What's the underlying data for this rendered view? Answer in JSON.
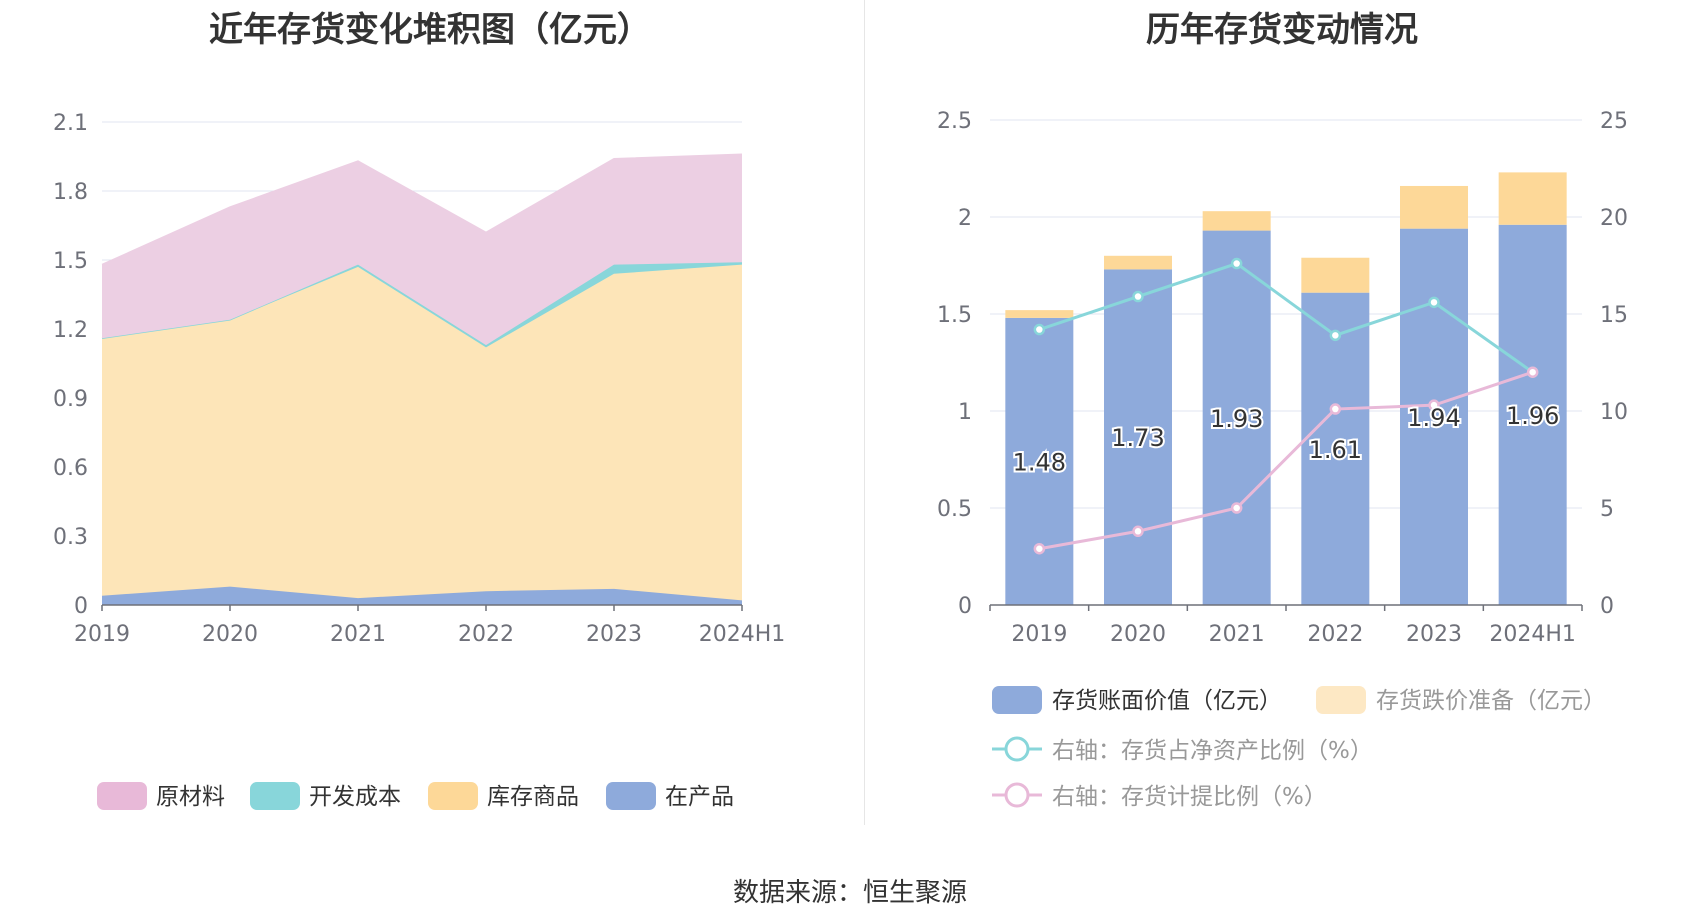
{
  "source_text": "数据来源：恒生聚源",
  "chart_data": [
    {
      "type": "area",
      "stacked": true,
      "title": "近年存货变化堆积图（亿元）",
      "categories": [
        "2019",
        "2020",
        "2021",
        "2022",
        "2023",
        "2024H1"
      ],
      "yticks": [
        "0",
        "0.3",
        "0.6",
        "0.9",
        "1.2",
        "1.5",
        "1.8",
        "2.1"
      ],
      "ylim": [
        0,
        2.1
      ],
      "grid": true,
      "legend_position": "bottom",
      "series": [
        {
          "name": "在产品",
          "color": "#8eaadb",
          "values": [
            0.04,
            0.08,
            0.03,
            0.06,
            0.07,
            0.02
          ]
        },
        {
          "name": "库存商品",
          "color": "#fde5b8",
          "values": [
            1.12,
            1.16,
            1.44,
            1.06,
            1.37,
            1.46
          ]
        },
        {
          "name": "开发成本",
          "color": "#88d6da",
          "values": [
            0.0,
            0.0,
            0.01,
            0.01,
            0.04,
            0.01
          ]
        },
        {
          "name": "原材料",
          "color": "#eccfe3",
          "values": [
            0.32,
            0.49,
            0.45,
            0.49,
            0.46,
            0.47
          ]
        }
      ],
      "legend_order": [
        "原材料",
        "开发成本",
        "库存商品",
        "在产品"
      ],
      "legend_colors": {
        "原材料": "#e8b9d8",
        "开发成本": "#88d6da",
        "库存商品": "#fdd898",
        "在产品": "#8eaadb"
      }
    },
    {
      "type": "bar",
      "stacked": true,
      "title": "历年存货变动情况",
      "categories": [
        "2019",
        "2020",
        "2021",
        "2022",
        "2023",
        "2024H1"
      ],
      "yticks_left": [
        "0",
        "0.5",
        "1",
        "1.5",
        "2",
        "2.5"
      ],
      "ylim_left": [
        0,
        2.5
      ],
      "yticks_right": [
        "0",
        "5",
        "10",
        "15",
        "20",
        "25"
      ],
      "ylim_right": [
        0,
        25
      ],
      "grid": true,
      "legend_position": "bottom",
      "series": [
        {
          "name": "存货账面价值（亿元）",
          "axis": "left",
          "kind": "bar",
          "color": "#8eaadb",
          "values": [
            1.48,
            1.73,
            1.93,
            1.61,
            1.94,
            1.96
          ],
          "labels": [
            "1.48",
            "1.73",
            "1.93",
            "1.61",
            "1.94",
            "1.96"
          ]
        },
        {
          "name": "存货跌价准备（亿元）",
          "axis": "left",
          "kind": "bar",
          "color": "#fdd898",
          "legend_color": "#fde8c4",
          "values": [
            0.04,
            0.07,
            0.1,
            0.18,
            0.22,
            0.27
          ]
        },
        {
          "name": "右轴：存货占净资产比例（%）",
          "axis": "right",
          "kind": "line",
          "color": "#88d6da",
          "values": [
            14.2,
            15.9,
            17.6,
            13.9,
            15.6,
            12.0
          ]
        },
        {
          "name": "右轴：存货计提比例（%）",
          "axis": "right",
          "kind": "line",
          "color": "#e8b9d8",
          "values": [
            2.9,
            3.8,
            5.0,
            10.1,
            10.3,
            12.0
          ]
        }
      ]
    }
  ]
}
